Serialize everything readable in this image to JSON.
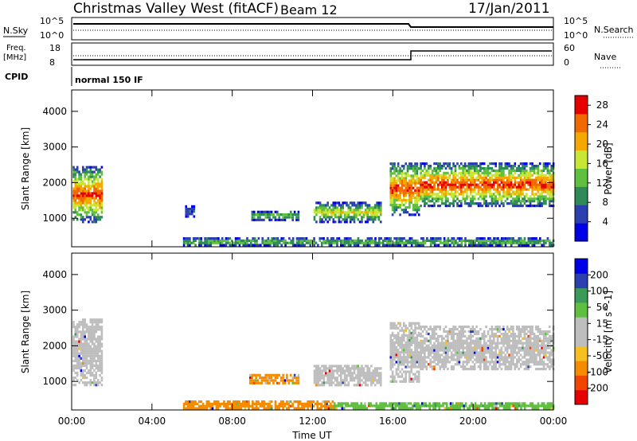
{
  "header": {
    "station": "Christmas Valley West (fitACF)",
    "beam": "Beam 12",
    "date": "17/Jan/2011"
  },
  "top_panels": {
    "nsky_label": "N.Sky",
    "nsky_ticks": [
      "10^5",
      "10^0"
    ],
    "nsearch_label": "N.Search",
    "nsearch_ticks": [
      "10^5",
      "10^0"
    ],
    "freq_label_1": "Freq.",
    "freq_label_2": "[MHz]",
    "freq_ticks": [
      "18",
      "8"
    ],
    "nave_label": "Nave",
    "nave_ticks": [
      "60",
      "0"
    ],
    "cpid_label": "CPID",
    "cpid_value": "normal 150 IF"
  },
  "colors": {
    "power_scale": [
      "#0000e6",
      "#2b3fb0",
      "#2e8b57",
      "#5fbf3f",
      "#c8e633",
      "#f5a800",
      "#f06a00",
      "#e60000"
    ],
    "velocity_scale": [
      "#e60000",
      "#f04600",
      "#f58c00",
      "#f5c020",
      "#bebebe",
      "#bebebe",
      "#5fbf3f",
      "#3a9a5a",
      "#2b3fb0",
      "#0000e6"
    ],
    "ground": "#bebebe"
  },
  "chart_data": [
    {
      "type": "heatmap",
      "title": "Power",
      "xlabel": "",
      "ylabel": "Slant Range [km]",
      "x_ticks": [
        "00:00",
        "04:00",
        "08:00",
        "12:00",
        "16:00",
        "20:00",
        "00:00"
      ],
      "y_ticks": [
        "1000",
        "2000",
        "3000",
        "4000"
      ],
      "xlim_hours": [
        0,
        24
      ],
      "ylim_km": [
        200,
        4600
      ],
      "colorbar_label": "Power [dB]",
      "colorbar_ticks": [
        "4",
        "8",
        "12",
        "16",
        "20",
        "24",
        "28"
      ],
      "colorbar_range": [
        0,
        30
      ],
      "regions": [
        {
          "t0": 0.0,
          "t1": 1.5,
          "r0": 900,
          "r1": 2500,
          "peak": 27
        },
        {
          "t0": 5.6,
          "t1": 6.1,
          "r0": 1050,
          "r1": 1400,
          "peak": 6
        },
        {
          "t0": 8.9,
          "t1": 11.3,
          "r0": 950,
          "r1": 1250,
          "peak": 14
        },
        {
          "t0": 12.0,
          "t1": 15.4,
          "r0": 900,
          "r1": 1500,
          "peak": 18
        },
        {
          "t0": 15.8,
          "t1": 17.3,
          "r0": 1100,
          "r1": 2600,
          "peak": 27
        },
        {
          "t0": 17.3,
          "t1": 24.0,
          "r0": 1350,
          "r1": 2600,
          "peak": 27
        },
        {
          "t0": 5.5,
          "t1": 24.0,
          "r0": 250,
          "r1": 500,
          "peak": 14
        }
      ]
    },
    {
      "type": "heatmap",
      "title": "Velocity",
      "xlabel": "Time UT",
      "ylabel": "Slant Range [km]",
      "x_ticks": [
        "00:00",
        "04:00",
        "08:00",
        "12:00",
        "16:00",
        "20:00",
        "00:00"
      ],
      "y_ticks": [
        "1000",
        "2000",
        "3000",
        "4000"
      ],
      "xlim_hours": [
        0,
        24
      ],
      "ylim_km": [
        200,
        4600
      ],
      "colorbar_label": "Velocity [m s^-1]",
      "colorbar_ticks": [
        "200",
        "100",
        "50",
        "15",
        "-15",
        "-50",
        "-100",
        "-200"
      ],
      "regions": [
        {
          "t0": 0.0,
          "t1": 1.5,
          "r0": 900,
          "r1": 2800,
          "vel": "ground"
        },
        {
          "t0": 8.8,
          "t1": 11.3,
          "r0": 950,
          "r1": 1250,
          "vel": "-50"
        },
        {
          "t0": 12.0,
          "t1": 15.4,
          "r0": 900,
          "r1": 1500,
          "vel": "ground"
        },
        {
          "t0": 15.8,
          "t1": 17.3,
          "r0": 1000,
          "r1": 2700,
          "vel": "ground"
        },
        {
          "t0": 17.3,
          "t1": 24.0,
          "r0": 1350,
          "r1": 2600,
          "vel": "ground"
        },
        {
          "t0": 5.5,
          "t1": 13.0,
          "r0": 250,
          "r1": 500,
          "vel": "-50"
        },
        {
          "t0": 13.0,
          "t1": 24.0,
          "r0": 250,
          "r1": 450,
          "vel": "50"
        }
      ]
    }
  ]
}
